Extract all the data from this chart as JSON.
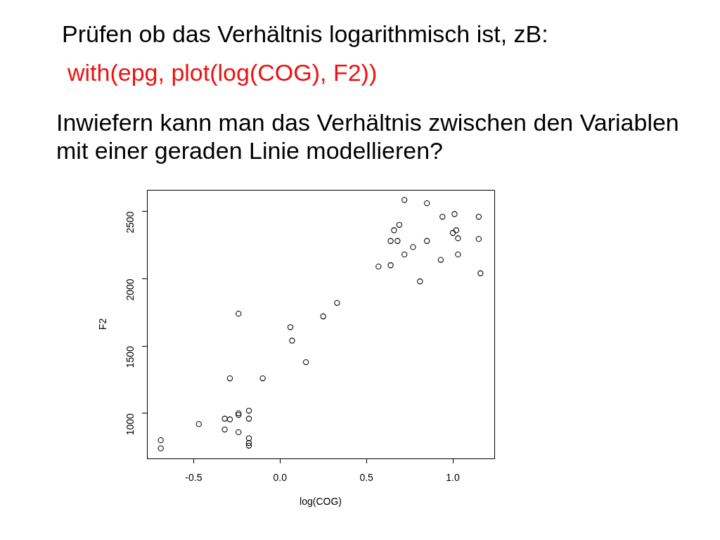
{
  "chart_data": {
    "type": "scatter",
    "title": "Prüfen ob das Verhältnis logarithmisch ist, zB:",
    "subtitle": "with(epg, plot(log(COG), F2))",
    "annotations": [
      "Inwiefern kann man das Verhältnis zwischen den Variablen mit einer geraden Linie modellieren?"
    ],
    "xlabel": "log(COG)",
    "ylabel": "F2",
    "x": [
      -0.69,
      -0.69,
      -0.47,
      -0.32,
      -0.29,
      -0.32,
      -0.29,
      -0.24,
      -0.24,
      -0.24,
      -0.24,
      -0.18,
      -0.18,
      -0.18,
      -0.18,
      -0.18,
      -0.1,
      0.06,
      0.07,
      0.15,
      0.25,
      0.33,
      0.57,
      0.64,
      0.64,
      0.68,
      0.66,
      0.69,
      0.72,
      0.72,
      0.77,
      0.85,
      0.85,
      0.81,
      0.93,
      0.94,
      1.01,
      1.0,
      1.02,
      1.03,
      1.03,
      1.15,
      1.15,
      1.16
    ],
    "values": [
      800,
      740,
      920,
      960,
      955,
      880,
      1260,
      1740,
      1000,
      988,
      860,
      1020,
      960,
      815,
      780,
      760,
      1260,
      1640,
      1540,
      1380,
      1720,
      1820,
      2090,
      2100,
      2280,
      2280,
      2360,
      2400,
      2585,
      2180,
      2235,
      2560,
      2280,
      1980,
      2140,
      2460,
      2480,
      2340,
      2360,
      2300,
      2180,
      2460,
      2295,
      2040
    ],
    "color": "#000000",
    "marker": "circle",
    "xlim": [
      -0.77,
      1.24
    ],
    "ylim": [
      665,
      2660
    ],
    "xticks": [
      -0.5,
      {
        "value": 0,
        "label": "0.0"
      },
      0.5,
      {
        "value": 1,
        "label": "1.0"
      }
    ],
    "yticks": [
      1000,
      1500,
      2000,
      2500
    ],
    "grid": false,
    "legend": false
  }
}
